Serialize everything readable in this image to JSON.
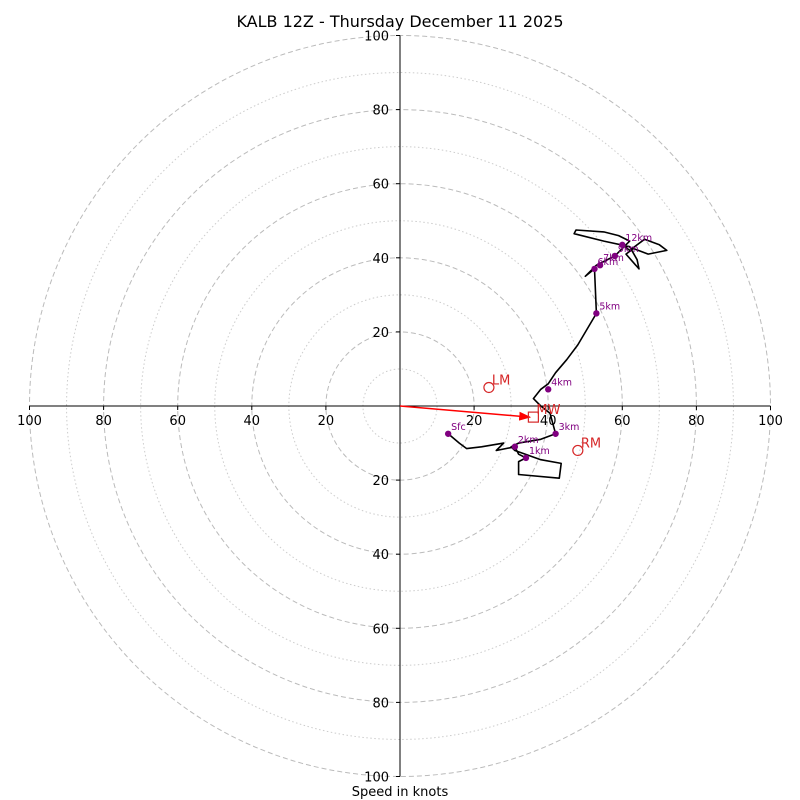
{
  "chart_data": {
    "type": "hodograph",
    "title": "KALB 12Z - Thursday December 11 2025",
    "xlabel": "Speed in knots",
    "xlim": [
      -100,
      100
    ],
    "ylim": [
      -100,
      100
    ],
    "major_rings": [
      20,
      40,
      60,
      80,
      100
    ],
    "minor_rings": [
      10,
      30,
      50,
      70,
      90
    ],
    "x_ticks": [
      {
        "value": -100,
        "label": "100"
      },
      {
        "value": -80,
        "label": "80"
      },
      {
        "value": -60,
        "label": "60"
      },
      {
        "value": -40,
        "label": "40"
      },
      {
        "value": -20,
        "label": "20"
      },
      {
        "value": 20,
        "label": "20"
      },
      {
        "value": 40,
        "label": "40"
      },
      {
        "value": 60,
        "label": "60"
      },
      {
        "value": 80,
        "label": "80"
      },
      {
        "value": 100,
        "label": "100"
      }
    ],
    "y_ticks": [
      {
        "value": 100,
        "label": "100"
      },
      {
        "value": 80,
        "label": "80"
      },
      {
        "value": 60,
        "label": "60"
      },
      {
        "value": 40,
        "label": "40"
      },
      {
        "value": 20,
        "label": "20"
      },
      {
        "value": -20,
        "label": "20"
      },
      {
        "value": -40,
        "label": "40"
      },
      {
        "value": -60,
        "label": "60"
      },
      {
        "value": -80,
        "label": "80"
      },
      {
        "value": -100,
        "label": "100"
      }
    ],
    "trace": [
      [
        13,
        -7.5
      ],
      [
        16,
        -10
      ],
      [
        18,
        -11.5
      ],
      [
        22,
        -11
      ],
      [
        28,
        -10
      ],
      [
        26,
        -12
      ],
      [
        31,
        -11
      ],
      [
        32,
        -13
      ],
      [
        34,
        -14
      ],
      [
        32,
        -15
      ],
      [
        32,
        -18.5
      ],
      [
        43,
        -19.5
      ],
      [
        43.5,
        -15.5
      ],
      [
        38,
        -14.5
      ],
      [
        31,
        -12
      ],
      [
        30,
        -11
      ],
      [
        32,
        -10
      ],
      [
        38,
        -9
      ],
      [
        42,
        -7.5
      ],
      [
        40.5,
        -2
      ],
      [
        38,
        0
      ],
      [
        36,
        2
      ],
      [
        38,
        4.5
      ],
      [
        40,
        6
      ],
      [
        42,
        9
      ],
      [
        45,
        12.5
      ],
      [
        48,
        16.5
      ],
      [
        53,
        25
      ],
      [
        52.5,
        37
      ],
      [
        50,
        35
      ],
      [
        53,
        38
      ],
      [
        55,
        39
      ],
      [
        58,
        40.5
      ],
      [
        62,
        44.5
      ],
      [
        59,
        46
      ],
      [
        55,
        47
      ],
      [
        47.5,
        47.5
      ],
      [
        47,
        46.5
      ],
      [
        55,
        44.5
      ],
      [
        62,
        43
      ],
      [
        64,
        39.5
      ],
      [
        64.5,
        37
      ],
      [
        61,
        41
      ],
      [
        63,
        42.5
      ],
      [
        67,
        41
      ],
      [
        72,
        42
      ],
      [
        70,
        43.5
      ],
      [
        66,
        45
      ],
      [
        62,
        42
      ],
      [
        60,
        43.5
      ]
    ],
    "levels": [
      {
        "label": "Sfc",
        "u": 13,
        "v": -7.5
      },
      {
        "label": "1km",
        "u": 34,
        "v": -14
      },
      {
        "label": "2km",
        "u": 31,
        "v": -11
      },
      {
        "label": "3km",
        "u": 42,
        "v": -7.5
      },
      {
        "label": "4km",
        "u": 40,
        "v": 4.5
      },
      {
        "label": "5km",
        "u": 53,
        "v": 25
      },
      {
        "label": "6km",
        "u": 52.5,
        "v": 37
      },
      {
        "label": "7km",
        "u": 54,
        "v": 38
      },
      {
        "label": "9km",
        "u": 58,
        "v": 40.5
      },
      {
        "label": "12km",
        "u": 60,
        "v": 43.5
      }
    ],
    "storm_markers": [
      {
        "label": "LM",
        "u": 24,
        "v": 5,
        "shape": "circle"
      },
      {
        "label": "RM",
        "u": 48,
        "v": -12,
        "shape": "circle"
      },
      {
        "label": "MW",
        "u": 36,
        "v": -3,
        "shape": "square"
      }
    ],
    "vector_to": {
      "u": 35,
      "v": -3
    },
    "colors": {
      "trace": "#000000",
      "level_point": "#800080",
      "storm": "#d62728",
      "vector": "#ff0000",
      "grid": "#bbbbbb",
      "axis": "#000000"
    }
  }
}
